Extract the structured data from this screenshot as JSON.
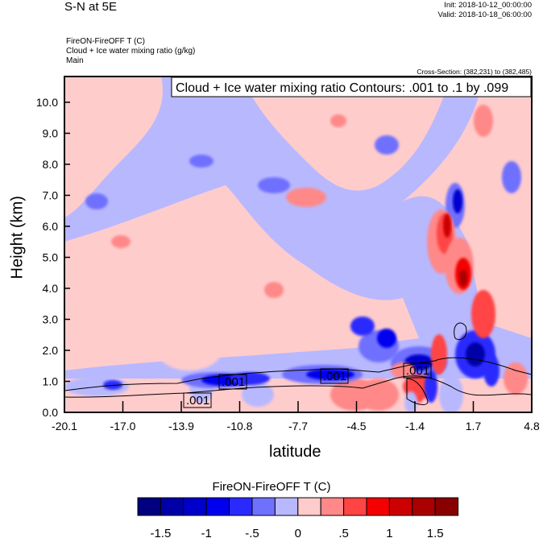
{
  "header": {
    "title": "S-N at 5E",
    "init": "Init: 2018-10-12_00:00:00",
    "valid": "Valid: 2018-10-18_06:00:00",
    "subtitle_lines": [
      "FireON-FireOFF T   (C)",
      "Cloud + Ice water mixing ratio   (g/kg)",
      "Main"
    ],
    "cross_section": "Cross-Section: (382,231) to (382,485)"
  },
  "chart_data": {
    "type": "heatmap",
    "title": "Cloud + Ice water mixing ratio Contours: .001 to .1 by .099",
    "xlabel": "latitude",
    "ylabel": "Height (km)",
    "x_ticks": [
      "-20.1",
      "-17.0",
      "-13.9",
      "-10.8",
      "-7.7",
      "-4.5",
      "-1.4",
      "1.7",
      "4.8"
    ],
    "xlim": [
      -20.1,
      4.8
    ],
    "y_ticks": [
      "0.0",
      "1.0",
      "2.0",
      "3.0",
      "4.0",
      "5.0",
      "6.0",
      "7.0",
      "8.0",
      "9.0",
      "10.0"
    ],
    "ylim": [
      0,
      10.8
    ],
    "contour_labels": [
      ".001",
      ".001",
      ".001",
      ".001"
    ],
    "colorbar": {
      "title": "FireON-FireOFF T  (C)",
      "colors": [
        "#000080",
        "#0000a8",
        "#0000cc",
        "#0000ee",
        "#2a2aff",
        "#7070ff",
        "#b8b8ff",
        "#ffcccc",
        "#ff8888",
        "#ff4444",
        "#f50000",
        "#cc0000",
        "#aa0000",
        "#880000"
      ],
      "labels": [
        "-1.5",
        "-1",
        "-.5",
        "0",
        ".5",
        "1",
        "1.5"
      ]
    }
  }
}
